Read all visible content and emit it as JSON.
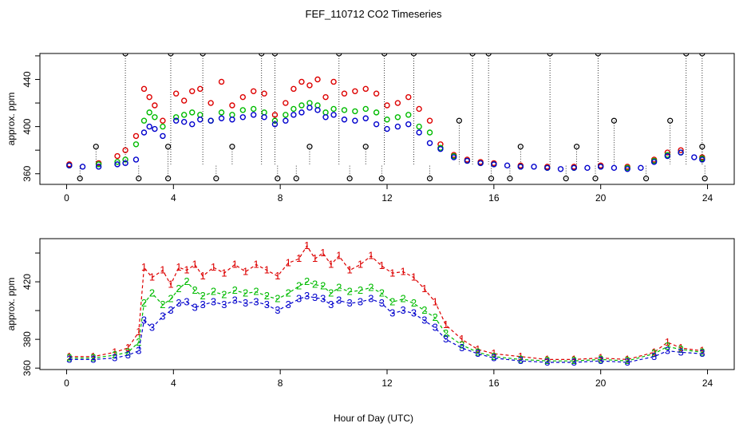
{
  "title": "FEF_110712  CO2 Timeseries",
  "xlabel": "Hour of Day (UTC)",
  "colors": {
    "series1": "#dd0000",
    "series2": "#00bb00",
    "series3": "#0000cc",
    "cyan": "#00cccc",
    "black": "#000000"
  },
  "chart_data": [
    {
      "type": "scatter",
      "ylabel": "approx. ppm",
      "xlim": [
        -1,
        25
      ],
      "ylim": [
        351,
        462
      ],
      "xticks": [
        0,
        4,
        8,
        12,
        16,
        20,
        24
      ],
      "yticks": [
        360,
        400,
        440
      ],
      "hidden_yticks": [
        380,
        420,
        460
      ],
      "series": [
        {
          "color": "red",
          "x": [
            0.1,
            1.2,
            1.9,
            2.2,
            2.6,
            2.9,
            3.1,
            3.3,
            3.6,
            4.1,
            4.4,
            4.7,
            5.0,
            5.4,
            5.8,
            6.2,
            6.6,
            7.0,
            7.4,
            7.8,
            8.2,
            8.5,
            8.8,
            9.1,
            9.4,
            9.7,
            10.0,
            10.4,
            10.8,
            11.2,
            11.6,
            12.0,
            12.4,
            12.8,
            13.2,
            13.6,
            14.0,
            14.5,
            15.0,
            15.5,
            16.0,
            17.0,
            18.0,
            19.0,
            20.0,
            21.0,
            22.0,
            22.5,
            23.0,
            23.8
          ],
          "y": [
            368,
            369,
            375,
            380,
            392,
            432,
            425,
            418,
            405,
            428,
            422,
            430,
            432,
            420,
            438,
            418,
            425,
            430,
            428,
            410,
            420,
            432,
            438,
            435,
            440,
            425,
            438,
            428,
            430,
            432,
            428,
            418,
            420,
            425,
            415,
            405,
            385,
            376,
            372,
            370,
            369,
            367,
            366,
            366,
            367,
            366,
            372,
            378,
            380,
            374
          ]
        },
        {
          "color": "green",
          "x": [
            0.1,
            1.2,
            1.9,
            2.2,
            2.6,
            2.9,
            3.1,
            3.3,
            3.6,
            4.1,
            4.4,
            4.7,
            5.0,
            5.4,
            5.8,
            6.2,
            6.6,
            7.0,
            7.4,
            7.8,
            8.2,
            8.5,
            8.8,
            9.1,
            9.4,
            9.7,
            10.0,
            10.4,
            10.8,
            11.2,
            11.6,
            12.0,
            12.4,
            12.8,
            13.2,
            13.6,
            14.0,
            14.5,
            15.0,
            15.5,
            16.0,
            17.0,
            18.0,
            19.0,
            20.0,
            21.0,
            22.0,
            22.5,
            23.0,
            23.8
          ],
          "y": [
            367,
            368,
            370,
            372,
            385,
            405,
            412,
            408,
            400,
            408,
            410,
            412,
            410,
            405,
            412,
            410,
            414,
            415,
            412,
            405,
            410,
            415,
            418,
            420,
            418,
            412,
            415,
            414,
            413,
            415,
            412,
            406,
            408,
            410,
            400,
            395,
            382,
            375,
            371,
            369,
            368,
            366,
            365,
            365,
            366,
            365,
            371,
            376,
            378,
            373
          ]
        },
        {
          "color": "blue",
          "x": [
            0.1,
            0.6,
            1.2,
            1.9,
            2.2,
            2.6,
            2.9,
            3.1,
            3.3,
            3.6,
            4.1,
            4.4,
            4.7,
            5.0,
            5.4,
            5.8,
            6.2,
            6.6,
            7.0,
            7.4,
            7.8,
            8.2,
            8.5,
            8.8,
            9.1,
            9.4,
            9.7,
            10.0,
            10.4,
            10.8,
            11.2,
            11.6,
            12.0,
            12.4,
            12.8,
            13.2,
            13.6,
            14.0,
            14.5,
            15.0,
            15.5,
            16.0,
            16.5,
            17.0,
            17.5,
            18.0,
            18.5,
            19.0,
            19.5,
            20.0,
            20.5,
            21.0,
            21.5,
            22.0,
            22.5,
            23.0,
            23.5,
            23.8
          ],
          "y": [
            367,
            366,
            366,
            368,
            369,
            372,
            395,
            400,
            398,
            392,
            405,
            404,
            402,
            406,
            405,
            407,
            406,
            408,
            410,
            408,
            402,
            405,
            410,
            412,
            416,
            414,
            408,
            410,
            406,
            405,
            407,
            402,
            398,
            400,
            402,
            395,
            386,
            381,
            374,
            371,
            369,
            368,
            367,
            366,
            366,
            365,
            364,
            365,
            365,
            366,
            365,
            364,
            365,
            370,
            375,
            378,
            374,
            372
          ]
        },
        {
          "color": "black",
          "x": [
            2.2,
            3.9,
            5.1,
            7.3,
            7.8,
            10.2,
            11.9,
            13.0,
            15.2,
            15.8,
            18.1,
            19.9,
            23.2,
            23.8
          ],
          "y": [
            462,
            462,
            462,
            462,
            462,
            462,
            462,
            462,
            462,
            462,
            462,
            462,
            462,
            462
          ]
        },
        {
          "color": "black",
          "x": [
            0.5,
            2.7,
            3.8,
            5.6,
            7.9,
            8.6,
            10.6,
            11.8,
            13.6,
            15.9,
            16.6,
            18.7,
            19.8,
            21.7,
            23.9
          ],
          "y": [
            356,
            356,
            356,
            356,
            356,
            356,
            356,
            356,
            356,
            356,
            356,
            356,
            356,
            356,
            356
          ]
        },
        {
          "color": "black",
          "x": [
            1.1,
            3.8,
            6.2,
            9.1,
            11.2,
            14.7,
            17.0,
            19.1,
            20.5,
            22.6,
            23.8
          ],
          "y": [
            383,
            383,
            383,
            383,
            383,
            405,
            383,
            383,
            405,
            405,
            383
          ]
        }
      ]
    },
    {
      "type": "scatter",
      "ylabel": "approx. ppm",
      "xlim": [
        -1,
        25
      ],
      "ylim": [
        359,
        450
      ],
      "xticks": [
        0,
        4,
        8,
        12,
        16,
        20,
        24
      ],
      "yticks": [
        360,
        380,
        420
      ],
      "hidden_yticks": [
        400,
        440
      ],
      "series": [
        {
          "name": "1",
          "color": "red",
          "x": [
            0.1,
            1.0,
            1.8,
            2.3,
            2.7,
            2.9,
            3.2,
            3.6,
            3.9,
            4.2,
            4.5,
            4.8,
            5.1,
            5.5,
            5.9,
            6.3,
            6.7,
            7.1,
            7.5,
            7.9,
            8.3,
            8.7,
            9.0,
            9.3,
            9.6,
            9.9,
            10.2,
            10.6,
            11.0,
            11.4,
            11.8,
            12.2,
            12.6,
            13.0,
            13.4,
            13.8,
            14.2,
            14.8,
            15.4,
            16.0,
            17.0,
            18.0,
            19.0,
            20.0,
            21.0,
            22.0,
            22.5,
            23.0,
            23.8
          ],
          "y": [
            368,
            368,
            371,
            374,
            385,
            430,
            423,
            428,
            418,
            430,
            428,
            432,
            424,
            430,
            426,
            432,
            427,
            432,
            428,
            424,
            433,
            436,
            445,
            436,
            440,
            432,
            438,
            428,
            432,
            438,
            431,
            426,
            427,
            423,
            415,
            406,
            390,
            380,
            373,
            370,
            368,
            366,
            366,
            367,
            366,
            371,
            378,
            374,
            372
          ]
        },
        {
          "name": "2",
          "color": "green",
          "x": [
            0.1,
            1.0,
            1.8,
            2.3,
            2.7,
            2.9,
            3.2,
            3.6,
            3.9,
            4.2,
            4.5,
            4.8,
            5.1,
            5.5,
            5.9,
            6.3,
            6.7,
            7.1,
            7.5,
            7.9,
            8.3,
            8.7,
            9.0,
            9.3,
            9.6,
            9.9,
            10.2,
            10.6,
            11.0,
            11.4,
            11.8,
            12.2,
            12.6,
            13.0,
            13.4,
            13.8,
            14.2,
            14.8,
            15.4,
            16.0,
            17.0,
            18.0,
            19.0,
            20.0,
            21.0,
            22.0,
            22.5,
            23.0,
            23.8
          ],
          "y": [
            367,
            367,
            369,
            371,
            378,
            405,
            412,
            404,
            408,
            415,
            420,
            414,
            410,
            413,
            411,
            414,
            412,
            413,
            410,
            408,
            412,
            417,
            420,
            418,
            417,
            412,
            416,
            413,
            414,
            416,
            412,
            406,
            408,
            405,
            400,
            395,
            384,
            376,
            371,
            368,
            366,
            365,
            365,
            366,
            365,
            370,
            375,
            373,
            371
          ]
        },
        {
          "name": "3",
          "color": "blue",
          "x": [
            0.1,
            1.0,
            1.8,
            2.3,
            2.7,
            2.9,
            3.2,
            3.6,
            3.9,
            4.2,
            4.5,
            4.8,
            5.1,
            5.5,
            5.9,
            6.3,
            6.7,
            7.1,
            7.5,
            7.9,
            8.3,
            8.7,
            9.0,
            9.3,
            9.6,
            9.9,
            10.2,
            10.6,
            11.0,
            11.4,
            11.8,
            12.2,
            12.6,
            13.0,
            13.4,
            13.8,
            14.2,
            14.8,
            15.4,
            16.0,
            17.0,
            18.0,
            19.0,
            20.0,
            21.0,
            22.0,
            22.5,
            23.0,
            23.8
          ],
          "y": [
            366,
            366,
            367,
            369,
            372,
            393,
            388,
            396,
            400,
            405,
            406,
            402,
            404,
            406,
            404,
            407,
            405,
            406,
            404,
            400,
            404,
            408,
            410,
            409,
            408,
            404,
            407,
            405,
            406,
            408,
            405,
            398,
            400,
            398,
            393,
            388,
            380,
            374,
            370,
            367,
            365,
            364,
            364,
            365,
            364,
            368,
            372,
            371,
            370
          ]
        }
      ]
    }
  ]
}
